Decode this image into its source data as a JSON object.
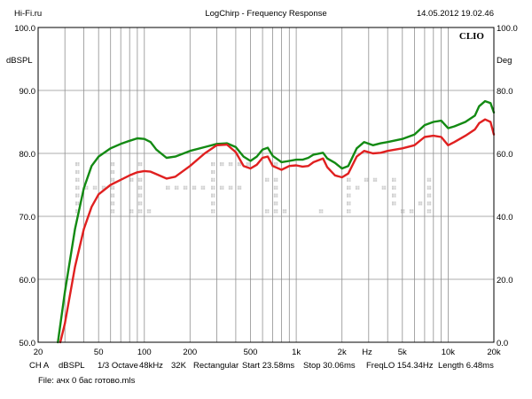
{
  "header": {
    "left": "Hi-Fi.ru",
    "center": "LogChirp - Frequency Response",
    "right": "14.05.2012 19.02.46"
  },
  "chart_data": {
    "type": "line",
    "brand": "CLIO",
    "xscale": "log",
    "xlim": [
      20,
      20000
    ],
    "ylim": [
      50,
      100
    ],
    "grid": true,
    "y_left_unit": "dBSPL",
    "y_right_unit": "Deg",
    "y_left_ticks": [
      "100.0",
      "90.0",
      "80.0",
      "70.0",
      "60.0",
      "50.0"
    ],
    "y_right_ticks": [
      "100.0",
      "80.0",
      "60.0",
      "40.0",
      "20.0",
      "0.0"
    ],
    "x_ticks": [
      {
        "v": 20,
        "label": "20"
      },
      {
        "v": 50,
        "label": "50"
      },
      {
        "v": 100,
        "label": "100"
      },
      {
        "v": 200,
        "label": "200"
      },
      {
        "v": 500,
        "label": "500"
      },
      {
        "v": 1000,
        "label": "1k"
      },
      {
        "v": 2000,
        "label": "2k"
      },
      {
        "v": 5000,
        "label": "5k"
      },
      {
        "v": 10000,
        "label": "10k"
      },
      {
        "v": 20000,
        "label": "20k"
      }
    ],
    "x_unit_label": "Hz",
    "watermark": "Hi-Fi.ru",
    "series": [
      {
        "color": "#138a13",
        "points": [
          [
            27,
            50
          ],
          [
            30,
            58
          ],
          [
            35,
            68
          ],
          [
            40,
            74.5
          ],
          [
            45,
            78
          ],
          [
            50,
            79.5
          ],
          [
            60,
            80.8
          ],
          [
            70,
            81.5
          ],
          [
            80,
            82
          ],
          [
            90,
            82.4
          ],
          [
            100,
            82.3
          ],
          [
            110,
            81.8
          ],
          [
            120,
            80.6
          ],
          [
            140,
            79.3
          ],
          [
            160,
            79.5
          ],
          [
            200,
            80.4
          ],
          [
            250,
            81
          ],
          [
            300,
            81.5
          ],
          [
            350,
            81.6
          ],
          [
            400,
            81
          ],
          [
            450,
            79.5
          ],
          [
            500,
            78.8
          ],
          [
            550,
            79.5
          ],
          [
            600,
            80.6
          ],
          [
            650,
            80.9
          ],
          [
            700,
            79.6
          ],
          [
            800,
            78.6
          ],
          [
            900,
            78.8
          ],
          [
            1000,
            79
          ],
          [
            1100,
            79
          ],
          [
            1200,
            79.3
          ],
          [
            1300,
            79.8
          ],
          [
            1500,
            80.1
          ],
          [
            1600,
            79.2
          ],
          [
            1800,
            78.5
          ],
          [
            2000,
            77.6
          ],
          [
            2200,
            78
          ],
          [
            2500,
            80.8
          ],
          [
            2800,
            81.8
          ],
          [
            3200,
            81.3
          ],
          [
            3600,
            81.6
          ],
          [
            4000,
            81.8
          ],
          [
            5000,
            82.3
          ],
          [
            6000,
            83
          ],
          [
            7000,
            84.5
          ],
          [
            8000,
            85
          ],
          [
            9000,
            85.2
          ],
          [
            10000,
            84
          ],
          [
            11000,
            84.3
          ],
          [
            13000,
            85
          ],
          [
            15000,
            86
          ],
          [
            16000,
            87.5
          ],
          [
            17500,
            88.3
          ],
          [
            19000,
            88
          ],
          [
            20000,
            86.5
          ]
        ]
      },
      {
        "color": "#e02020",
        "points": [
          [
            28,
            50
          ],
          [
            30,
            53
          ],
          [
            35,
            62
          ],
          [
            40,
            68
          ],
          [
            45,
            71.5
          ],
          [
            50,
            73.5
          ],
          [
            60,
            75
          ],
          [
            70,
            75.8
          ],
          [
            80,
            76.5
          ],
          [
            90,
            77
          ],
          [
            100,
            77.2
          ],
          [
            110,
            77.1
          ],
          [
            120,
            76.7
          ],
          [
            140,
            76
          ],
          [
            160,
            76.3
          ],
          [
            200,
            78
          ],
          [
            250,
            80
          ],
          [
            300,
            81.3
          ],
          [
            350,
            81.4
          ],
          [
            400,
            80.2
          ],
          [
            450,
            78
          ],
          [
            500,
            77.6
          ],
          [
            550,
            78.2
          ],
          [
            600,
            79.3
          ],
          [
            650,
            79.5
          ],
          [
            700,
            78
          ],
          [
            800,
            77.4
          ],
          [
            900,
            78
          ],
          [
            1000,
            78.1
          ],
          [
            1100,
            77.9
          ],
          [
            1200,
            78
          ],
          [
            1300,
            78.6
          ],
          [
            1500,
            79.2
          ],
          [
            1600,
            77.8
          ],
          [
            1800,
            76.5
          ],
          [
            2000,
            76.2
          ],
          [
            2200,
            76.8
          ],
          [
            2500,
            79.5
          ],
          [
            2800,
            80.4
          ],
          [
            3200,
            80
          ],
          [
            3600,
            80.1
          ],
          [
            4000,
            80.4
          ],
          [
            5000,
            80.8
          ],
          [
            6000,
            81.3
          ],
          [
            7000,
            82.6
          ],
          [
            8000,
            82.8
          ],
          [
            9000,
            82.6
          ],
          [
            10000,
            81.3
          ],
          [
            11000,
            81.8
          ],
          [
            13000,
            82.8
          ],
          [
            15000,
            83.8
          ],
          [
            16000,
            84.8
          ],
          [
            17500,
            85.4
          ],
          [
            19000,
            85
          ],
          [
            20000,
            83
          ]
        ]
      }
    ]
  },
  "footer": {
    "line1": [
      {
        "key": "channel",
        "text": "CH A"
      },
      {
        "key": "unit",
        "text": "dBSPL"
      },
      {
        "key": "smoothing",
        "text": "1/3 Octave"
      },
      {
        "key": "rate",
        "text": "48kHz"
      },
      {
        "key": "size",
        "text": "32K"
      },
      {
        "key": "window",
        "text": "Rectangular"
      },
      {
        "key": "start",
        "text": "Start 23.58ms"
      },
      {
        "key": "stop",
        "text": "Stop 30.06ms"
      },
      {
        "key": "freqlo",
        "text": "FreqLO 154.34Hz"
      },
      {
        "key": "length",
        "text": "Length 6.48ms"
      }
    ],
    "file": "File: ачх 0 бас готово.mls"
  }
}
